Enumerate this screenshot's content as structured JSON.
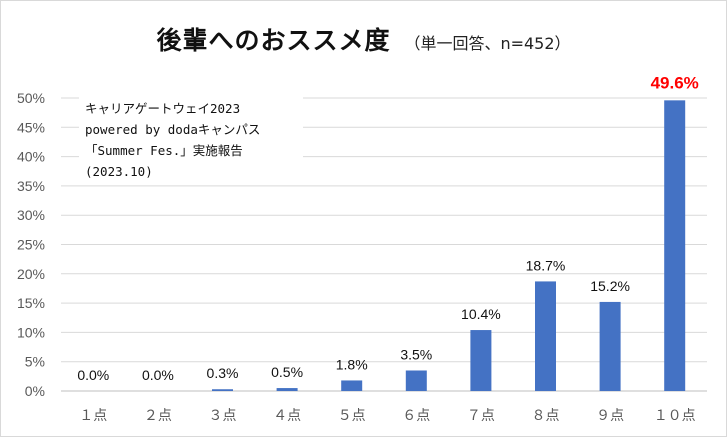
{
  "chart_data": {
    "type": "bar",
    "title": "後輩へのおススメ度",
    "subtitle": "（単一回答、n=452）",
    "categories": [
      "１点",
      "２点",
      "３点",
      "４点",
      "５点",
      "６点",
      "７点",
      "８点",
      "９点",
      "１０点"
    ],
    "values": [
      0.0,
      0.0,
      0.3,
      0.5,
      1.8,
      3.5,
      10.4,
      18.7,
      15.2,
      49.6
    ],
    "data_labels": [
      "0.0%",
      "0.0%",
      "0.3%",
      "0.5%",
      "1.8%",
      "3.5%",
      "10.4%",
      "18.7%",
      "15.2%",
      "49.6%"
    ],
    "highlight_index": 9,
    "y_ticks": [
      0,
      5,
      10,
      15,
      20,
      25,
      30,
      35,
      40,
      45,
      50
    ],
    "y_tick_labels": [
      "0%",
      "5%",
      "10%",
      "15%",
      "20%",
      "25%",
      "30%",
      "35%",
      "40%",
      "45%",
      "50%"
    ],
    "ylim": [
      0,
      50
    ],
    "grid": true,
    "legend": "none",
    "colors": {
      "bar": "#4472c4",
      "highlight_label": "#ff0000",
      "grid": "#d9d9d9"
    },
    "annotation": {
      "lines": [
        "キャリアゲートウェイ2023",
        "powered by dodaキャンパス",
        "「Summer Fes.」実施報告",
        "(2023.10)"
      ]
    }
  }
}
